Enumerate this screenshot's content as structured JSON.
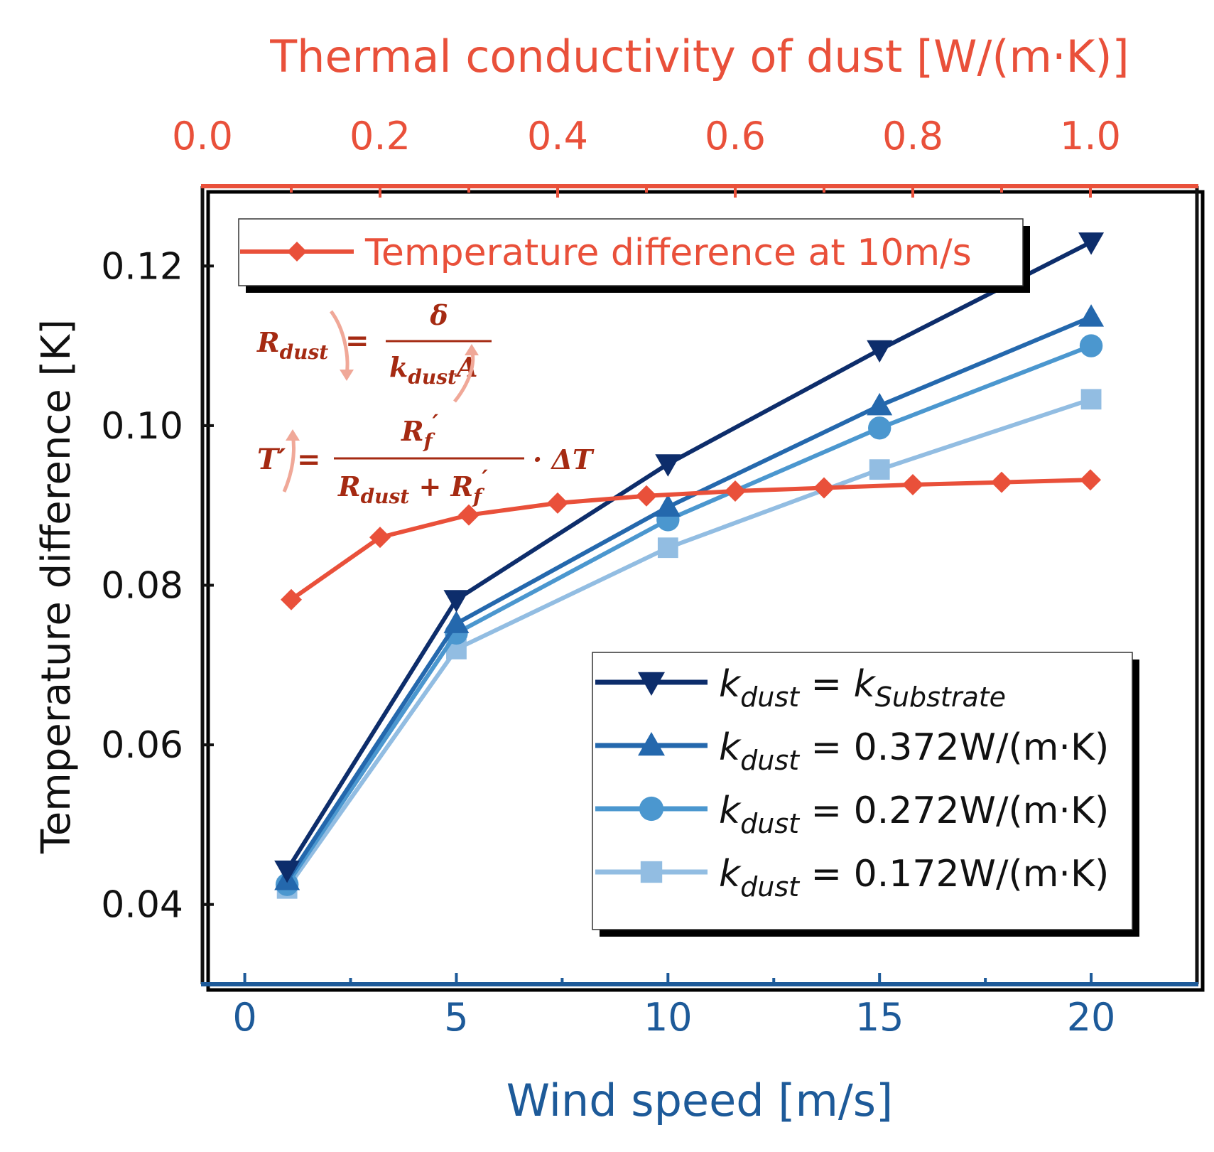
{
  "chart_data": {
    "type": "line",
    "title": "",
    "colors": {
      "axis_top": "#e9503a",
      "axis_bottom": "#1d5a99",
      "axis_left": "#111111",
      "formula": "#a52a12",
      "formula_arrow": "#f0a898"
    },
    "x_bottom": {
      "label": "Wind speed [m/s]",
      "range": [
        -1,
        22.5
      ],
      "ticks": [
        0,
        5,
        10,
        15,
        20
      ],
      "tick_labels": [
        "0",
        "5",
        "10",
        "15",
        "20"
      ]
    },
    "x_top": {
      "label": "Thermal conductivity of dust [W/(m·K)]",
      "range": [
        0,
        1.12
      ],
      "ticks": [
        0.0,
        0.2,
        0.4,
        0.6,
        0.8,
        1.0
      ],
      "tick_labels": [
        "0.0",
        "0.2",
        "0.4",
        "0.6",
        "0.8",
        "1.0"
      ]
    },
    "y": {
      "label": "Temperature difference [K]",
      "range": [
        0.03,
        0.13
      ],
      "ticks": [
        0.04,
        0.06,
        0.08,
        0.1,
        0.12
      ],
      "tick_labels": [
        "0.04",
        "0.06",
        "0.08",
        "0.10",
        "0.12"
      ]
    },
    "series_bottom": [
      {
        "name": "k_dust = k_Substrate",
        "key": "s1",
        "color": "#0d2d6b",
        "marker": "triangle-down",
        "x": [
          1,
          5,
          10,
          15,
          20
        ],
        "y": [
          0.0443,
          0.0782,
          0.0952,
          0.1095,
          0.123
        ]
      },
      {
        "name": "k_dust = 0.372W/(m·K)",
        "key": "s2",
        "color": "#2468ad",
        "marker": "triangle-up",
        "x": [
          1,
          5,
          10,
          15,
          20
        ],
        "y": [
          0.043,
          0.0752,
          0.0898,
          0.1025,
          0.1136
        ]
      },
      {
        "name": "k_dust = 0.272W/(m·K)",
        "key": "s3",
        "color": "#4b97cf",
        "marker": "circle",
        "x": [
          1,
          5,
          10,
          15,
          20
        ],
        "y": [
          0.0425,
          0.074,
          0.0882,
          0.0997,
          0.11
        ]
      },
      {
        "name": "k_dust = 0.172W/(m·K)",
        "key": "s4",
        "color": "#92bde2",
        "marker": "square",
        "x": [
          1,
          5,
          10,
          15,
          20
        ],
        "y": [
          0.042,
          0.072,
          0.0847,
          0.0945,
          0.1033
        ]
      }
    ],
    "series_top": {
      "name": "Temperature difference at 10m/s",
      "color": "#e9503a",
      "marker": "diamond",
      "x": [
        0.1,
        0.2,
        0.3,
        0.4,
        0.5,
        0.6,
        0.7,
        0.8,
        0.9,
        1.0
      ],
      "y": [
        0.0782,
        0.086,
        0.0888,
        0.0903,
        0.0912,
        0.0918,
        0.0922,
        0.0926,
        0.0929,
        0.0932
      ]
    },
    "legend_top": {
      "position": "top-left",
      "label": "Temperature difference at 10m/s"
    },
    "legend_bottom": {
      "position": "bottom-right",
      "entries": [
        {
          "k": "k",
          "sub": "dust",
          "eq": " = ",
          "rhs": "k",
          "rhs_sub": "Substrate",
          "value": ""
        },
        {
          "k": "k",
          "sub": "dust",
          "eq": " = ",
          "rhs": "",
          "rhs_sub": "",
          "value": "0.372W/(m·K)"
        },
        {
          "k": "k",
          "sub": "dust",
          "eq": " = ",
          "rhs": "",
          "rhs_sub": "",
          "value": "0.272W/(m·K)"
        },
        {
          "k": "k",
          "sub": "dust",
          "eq": " = ",
          "rhs": "",
          "rhs_sub": "",
          "value": "0.172W/(m·K)"
        }
      ]
    },
    "formula1": {
      "lhs": "R",
      "lhs_sub": "dust",
      "eq": "=",
      "num": "δ",
      "den": "k",
      "den_sub": "dust",
      "den_tail": "A"
    },
    "formula2": {
      "lhs": "T′",
      "eq": "=",
      "num": "R",
      "num_sub": "f",
      "num_prime": "′",
      "den1": "R",
      "den1_sub": "dust",
      "plus": " + ",
      "den2": "R",
      "den2_sub": "f",
      "den2_prime": "′",
      "tail": "· ΔT"
    }
  }
}
